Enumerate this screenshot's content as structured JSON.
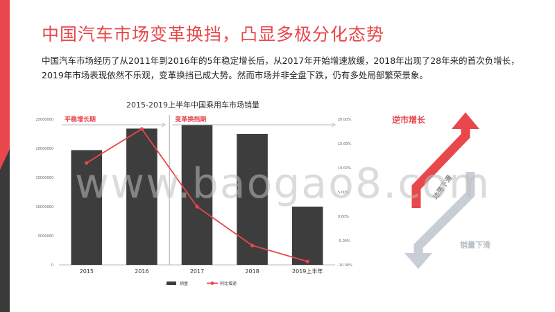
{
  "title": "中国汽车市场变革换挡，凸显多极分化态势",
  "intro": "中国汽车市场经历了从2011年到2016年的5年稳定增长后，从2017年开始增速放缓，2018年出现了28年来的首次负增长，2019年市场表现依然不乐观，变革换挡已成大势。然而市场并非全盘下跌，仍有多处局部繁荣景象。",
  "watermark": "www.baogao8.com",
  "arrows": {
    "up_label": "逆市增长",
    "mid_label": "动荡下滑",
    "down_label": "销量下滑",
    "up_color": "#e8474c",
    "down_color": "#c9ced6"
  },
  "chart_data": {
    "type": "bar",
    "title": "2015-2019上半年中国乘用车市场销量",
    "categories": [
      "2015",
      "2016",
      "2017",
      "2018",
      "2019上半年"
    ],
    "series": [
      {
        "name": "销量",
        "type": "bar",
        "axis": "left",
        "color": "#3d3d3d",
        "values": [
          19700000,
          23400000,
          24000000,
          22500000,
          10000000
        ]
      },
      {
        "name": "同比增速",
        "type": "line",
        "axis": "right",
        "color": "#e8474c",
        "values": [
          0.11,
          0.18,
          0.02,
          -0.06,
          -0.093
        ]
      }
    ],
    "y_left": {
      "ylim": [
        0,
        25000000
      ],
      "ticks": [
        "0",
        "5000000",
        "10000000",
        "15000000",
        "20000000",
        "25000000"
      ]
    },
    "y_right": {
      "ylim": [
        -0.1,
        0.2
      ],
      "ticks": [
        "-10.00%",
        "-5.00%",
        "0.00%",
        "5.00%",
        "10.00%",
        "15.00%",
        "20.00%"
      ]
    },
    "phases": [
      {
        "label": "平稳增长期",
        "from": 0,
        "to": 1
      },
      {
        "label": "变革换挡期",
        "from": 2,
        "to": 4
      }
    ],
    "grid": false,
    "legend_position": "bottom",
    "accent_color": "#e8474c"
  }
}
